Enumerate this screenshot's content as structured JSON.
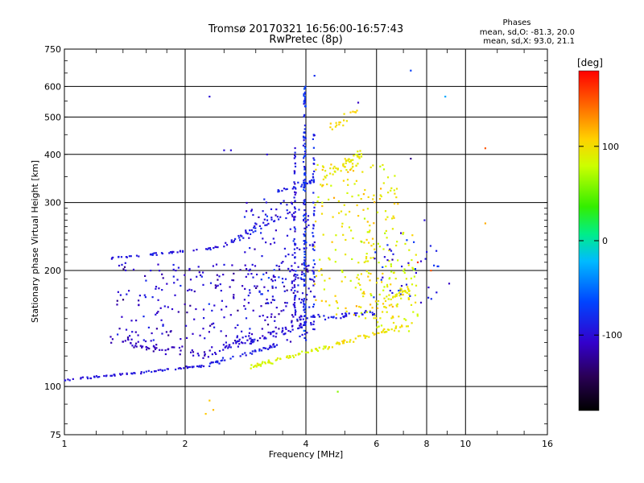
{
  "chart_data": {
    "type": "scatter",
    "title": "Tromsø 20170321 16:56:00-16:57:43",
    "subtitle": "RwPretec (8p)",
    "xlabel": "Frequency [MHz]",
    "ylabel": "Stationary phase Virtual Height [km]",
    "x_scale": "log",
    "y_scale": "log",
    "xlim": [
      1,
      16
    ],
    "ylim": [
      75,
      750
    ],
    "x_ticks": [
      1,
      2,
      4,
      6,
      8,
      10,
      16
    ],
    "y_ticks": [
      75,
      100,
      200,
      300,
      400,
      500,
      600,
      750
    ],
    "grid": true,
    "phase_info": {
      "title": "Phases",
      "line_o": "mean, sd,O: -81.3, 20.0",
      "line_x": "mean, sd,X:  93.0, 21.1"
    },
    "colorbar": {
      "label": "[deg]",
      "ticks": [
        100,
        0,
        -100
      ],
      "range": [
        -180,
        180
      ]
    },
    "traces": [
      {
        "x0": 1.0,
        "x1": 2.2,
        "h0": 104,
        "h1": 113,
        "phase": -95,
        "n": 70,
        "spread": 0.01
      },
      {
        "x0": 2.2,
        "x1": 3.4,
        "h0": 113,
        "h1": 128,
        "phase": -90,
        "n": 45,
        "spread": 0.018
      },
      {
        "x0": 2.9,
        "x1": 4.5,
        "h0": 112,
        "h1": 127,
        "phase": 85,
        "n": 60,
        "spread": 0.018
      },
      {
        "x0": 4.5,
        "x1": 7.2,
        "h0": 127,
        "h1": 145,
        "phase": 100,
        "n": 55,
        "spread": 0.02
      },
      {
        "x0": 1.3,
        "x1": 2.3,
        "h0": 132,
        "h1": 120,
        "phase": -110,
        "n": 55,
        "spread": 0.04
      },
      {
        "x0": 2.3,
        "x1": 4.0,
        "h0": 122,
        "h1": 145,
        "phase": -100,
        "n": 70,
        "spread": 0.04
      },
      {
        "x0": 3.8,
        "x1": 6.0,
        "h0": 150,
        "h1": 155,
        "phase": -90,
        "n": 40,
        "spread": 0.02
      },
      {
        "x0": 1.3,
        "x1": 2.5,
        "h0": 215,
        "h1": 230,
        "phase": -95,
        "n": 45,
        "spread": 0.012
      },
      {
        "x0": 2.5,
        "x1": 3.6,
        "h0": 232,
        "h1": 285,
        "phase": -90,
        "n": 40,
        "spread": 0.03
      },
      {
        "x0": 3.4,
        "x1": 4.2,
        "h0": 320,
        "h1": 340,
        "phase": -85,
        "n": 30,
        "spread": 0.03
      },
      {
        "x0": 4.4,
        "x1": 5.5,
        "h0": 350,
        "h1": 400,
        "phase": 95,
        "n": 45,
        "spread": 0.06
      },
      {
        "x0": 4.6,
        "x1": 5.4,
        "h0": 470,
        "h1": 520,
        "phase": 105,
        "n": 18,
        "spread": 0.04
      },
      {
        "x0": 6.2,
        "x1": 7.3,
        "h0": 165,
        "h1": 180,
        "phase": 95,
        "n": 25,
        "spread": 0.04
      }
    ],
    "clouds": [
      {
        "xmin": 1.35,
        "xmax": 4.2,
        "hmin": 130,
        "hmax": 210,
        "phase": -105,
        "n": 260
      },
      {
        "xmin": 2.8,
        "xmax": 4.1,
        "hmin": 160,
        "hmax": 310,
        "phase": -95,
        "n": 120
      },
      {
        "xmin": 4.2,
        "xmax": 6.8,
        "hmin": 150,
        "hmax": 380,
        "phase": 95,
        "n": 200
      },
      {
        "xmin": 5.4,
        "xmax": 7.6,
        "hmin": 135,
        "hmax": 260,
        "phase": 90,
        "n": 90
      },
      {
        "xmin": 5.8,
        "xmax": 8.6,
        "hmin": 165,
        "hmax": 240,
        "phase": -90,
        "n": 40
      }
    ],
    "columns": [
      {
        "x": 3.97,
        "hmin": 130,
        "hmax": 600,
        "phase": -80,
        "n": 130,
        "spread": 0.01
      },
      {
        "x": 3.75,
        "hmin": 150,
        "hmax": 420,
        "phase": -95,
        "n": 60,
        "spread": 0.01
      },
      {
        "x": 4.18,
        "hmin": 140,
        "hmax": 470,
        "phase": -85,
        "n": 50,
        "spread": 0.01
      }
    ],
    "isolated_points": [
      {
        "x": 2.3,
        "h": 565,
        "phase": -100
      },
      {
        "x": 8.9,
        "h": 565,
        "phase": -30
      },
      {
        "x": 7.3,
        "h": 660,
        "phase": -70
      },
      {
        "x": 4.2,
        "h": 640,
        "phase": -80
      },
      {
        "x": 11.2,
        "h": 415,
        "phase": 150
      },
      {
        "x": 11.2,
        "h": 265,
        "phase": 120
      },
      {
        "x": 7.9,
        "h": 270,
        "phase": -100
      },
      {
        "x": 7.3,
        "h": 390,
        "phase": -130
      },
      {
        "x": 2.5,
        "h": 410,
        "phase": -100
      },
      {
        "x": 2.6,
        "h": 410,
        "phase": -100
      },
      {
        "x": 2.3,
        "h": 92,
        "phase": 110
      },
      {
        "x": 2.35,
        "h": 87,
        "phase": 115
      },
      {
        "x": 2.25,
        "h": 85,
        "phase": 110
      },
      {
        "x": 4.8,
        "h": 97,
        "phase": 60
      },
      {
        "x": 6.9,
        "h": 250,
        "phase": -110
      },
      {
        "x": 7.6,
        "h": 210,
        "phase": 160
      },
      {
        "x": 8.2,
        "h": 200,
        "phase": 150
      },
      {
        "x": 5.4,
        "h": 545,
        "phase": -110
      },
      {
        "x": 3.2,
        "h": 400,
        "phase": -100
      },
      {
        "x": 9.1,
        "h": 185,
        "phase": -110
      }
    ]
  }
}
